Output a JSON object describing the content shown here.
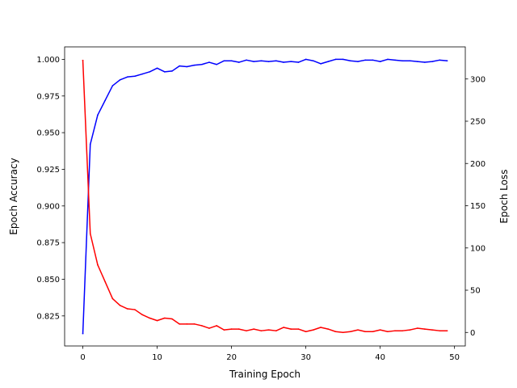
{
  "chart_data": {
    "type": "line",
    "title": "",
    "xlabel": "Training Epoch",
    "ylabel_left": "Epoch Accuracy",
    "ylabel_right": "Epoch Loss",
    "xlim": [
      -2.45,
      51.45
    ],
    "ylim_left": [
      0.8045,
      1.0085
    ],
    "ylim_right": [
      -16,
      338
    ],
    "x_ticks": [
      0,
      10,
      20,
      30,
      40,
      50
    ],
    "y_left_ticks": [
      "0.825",
      "0.850",
      "0.875",
      "0.900",
      "0.925",
      "0.950",
      "0.975",
      "1.000"
    ],
    "y_left_tick_values": [
      0.825,
      0.85,
      0.875,
      0.9,
      0.925,
      0.95,
      0.975,
      1.0
    ],
    "y_right_ticks": [
      0,
      50,
      100,
      150,
      200,
      250,
      300
    ],
    "grid": false,
    "series": [
      {
        "axis": "left",
        "color": "#0000ff",
        "x": [
          0,
          1,
          2,
          3,
          4,
          5,
          6,
          7,
          8,
          9,
          10,
          11,
          12,
          13,
          14,
          15,
          16,
          17,
          18,
          19,
          20,
          21,
          22,
          23,
          24,
          25,
          26,
          27,
          28,
          29,
          30,
          31,
          32,
          33,
          34,
          35,
          36,
          37,
          38,
          39,
          40,
          41,
          42,
          43,
          44,
          45,
          46,
          47,
          48,
          49
        ],
        "values": [
          0.813,
          0.942,
          0.962,
          0.972,
          0.982,
          0.986,
          0.988,
          0.9885,
          0.99,
          0.9915,
          0.994,
          0.9915,
          0.992,
          0.9955,
          0.995,
          0.996,
          0.9965,
          0.998,
          0.9965,
          0.999,
          0.999,
          0.998,
          0.9995,
          0.9985,
          0.999,
          0.9985,
          0.999,
          0.998,
          0.9985,
          0.998,
          1.0,
          0.999,
          0.997,
          0.9985,
          1.0,
          1.0,
          0.999,
          0.9985,
          0.9995,
          0.9995,
          0.9985,
          1.0,
          0.9995,
          0.999,
          0.999,
          0.9985,
          0.998,
          0.9985,
          0.9995,
          0.999
        ]
      },
      {
        "axis": "right",
        "color": "#ff0000",
        "x": [
          0,
          1,
          2,
          3,
          4,
          5,
          6,
          7,
          8,
          9,
          10,
          11,
          12,
          13,
          14,
          15,
          16,
          17,
          18,
          19,
          20,
          21,
          22,
          23,
          24,
          25,
          26,
          27,
          28,
          29,
          30,
          31,
          32,
          33,
          34,
          35,
          36,
          37,
          38,
          39,
          40,
          41,
          42,
          43,
          44,
          45,
          46,
          47,
          48,
          49
        ],
        "values": [
          322,
          117,
          80,
          60,
          40,
          32,
          28,
          27,
          21,
          17,
          14,
          17,
          16,
          10,
          10,
          10,
          8,
          5,
          8,
          3,
          4,
          4,
          2,
          4,
          2,
          3,
          2,
          6,
          4,
          4,
          1,
          3,
          6,
          4,
          1,
          0,
          1,
          3,
          1,
          1,
          3,
          1,
          2,
          2,
          3,
          5,
          4,
          3,
          2,
          2
        ]
      }
    ]
  }
}
